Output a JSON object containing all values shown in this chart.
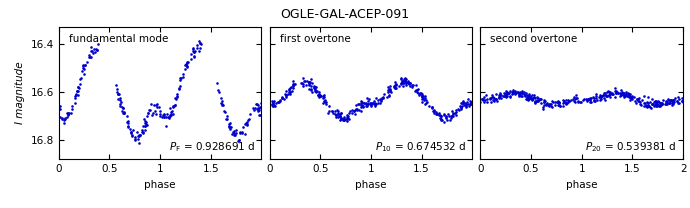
{
  "title": "OGLE-GAL-ACEP-091",
  "panels": [
    {
      "label": "fundamental mode",
      "period_subscript": "F",
      "period_value": "0.928691",
      "xlim": [
        0,
        2
      ],
      "ylim": [
        16.88,
        16.33
      ],
      "xticks": [
        0,
        0.5,
        1,
        1.5
      ],
      "yticks": [
        16.4,
        16.6,
        16.8
      ],
      "show_yticklabels": true,
      "mode": "fundamental"
    },
    {
      "label": "first overtone",
      "period_subscript": "10",
      "period_value": "0.674532",
      "xlim": [
        0,
        2
      ],
      "ylim": [
        16.88,
        16.33
      ],
      "xticks": [
        0,
        0.5,
        1,
        1.5
      ],
      "yticks": [
        16.4,
        16.6,
        16.8
      ],
      "show_yticklabels": false,
      "mode": "first"
    },
    {
      "label": "second overtone",
      "period_subscript": "20",
      "period_value": "0.539381",
      "xlim": [
        0,
        2
      ],
      "ylim": [
        16.88,
        16.33
      ],
      "xticks": [
        0,
        0.5,
        1,
        1.5,
        2
      ],
      "yticks": [
        16.4,
        16.6,
        16.8
      ],
      "show_yticklabels": false,
      "mode": "second"
    }
  ],
  "dot_color": "#0000cc",
  "dot_size": 3.5,
  "xlabel": "phase",
  "ylabel": "I magnitude",
  "background_color": "#ffffff",
  "title_fontsize": 9,
  "label_fontsize": 7.5,
  "tick_fontsize": 7.5,
  "period_fontsize": 7.5
}
